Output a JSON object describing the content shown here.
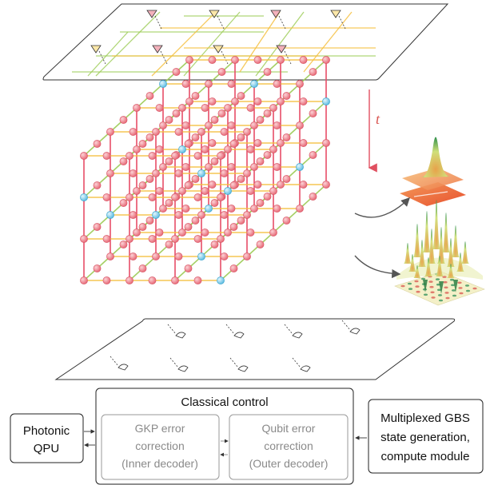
{
  "time_axis": {
    "label": "t"
  },
  "blocks": {
    "classical_control": {
      "title": "Classical control"
    },
    "photonic_qpu": {
      "line1": "Photonic",
      "line2": "QPU"
    },
    "gkp_decoder": {
      "line1": "GKP error",
      "line2": "correction",
      "line3": "(Inner decoder)"
    },
    "qubit_decoder": {
      "line1": "Qubit error",
      "line2": "correction",
      "line3": "(Outer decoder)"
    },
    "gbs_module": {
      "line1": "Multiplexed GBS",
      "line2": "state generation,",
      "line3": "compute module"
    }
  },
  "colors": {
    "lattice_node": "#f08a93",
    "gkp_node": "#8fd3ee",
    "edge_vertical": "#e8506a",
    "edge_green": "#9ccc55",
    "edge_yellow": "#f5c040",
    "arrow": "#555555",
    "time_arrow": "#e05060"
  }
}
